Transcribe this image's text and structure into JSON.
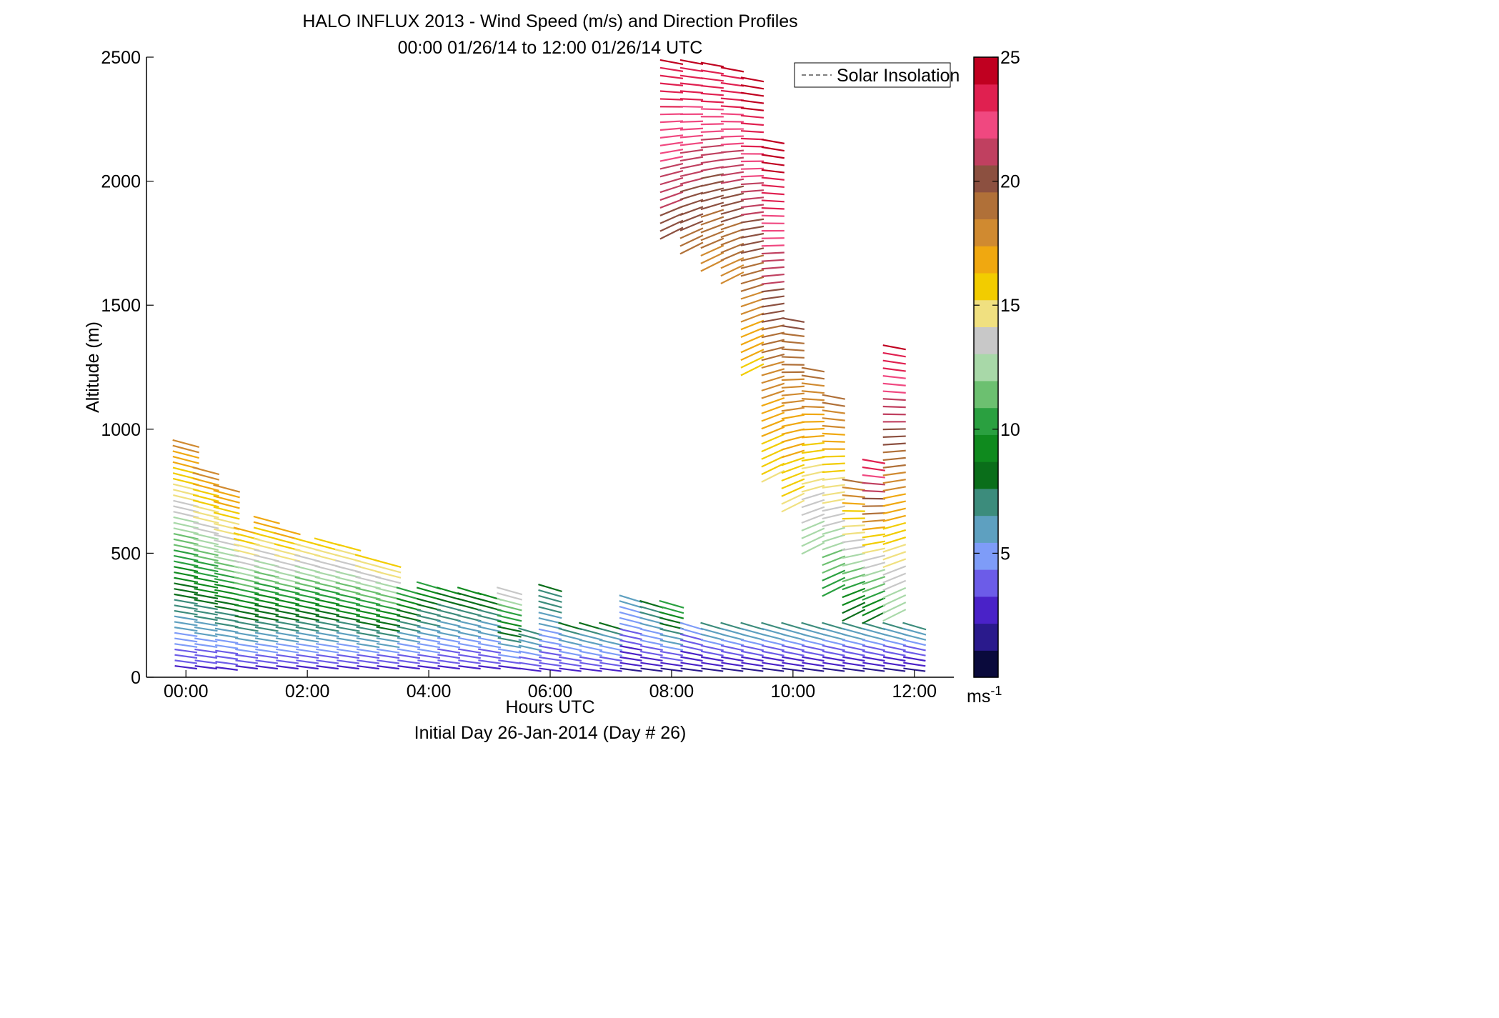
{
  "chart_data": {
    "type": "scatter",
    "subtype": "wind-barb-profile",
    "title": "HALO INFLUX 2013 - Wind Speed (m/s) and Direction Profiles",
    "subtitle": "00:00 01/26/14 to 12:00 01/26/14  UTC",
    "xlabel": "Hours UTC",
    "xlabel2": "Initial Day 26-Jan-2014 (Day # 26)",
    "ylabel": "Altitude (m)",
    "xlim": [
      -0.65,
      12.65
    ],
    "ylim": [
      0,
      2500
    ],
    "xticks": [
      0,
      2,
      4,
      6,
      8,
      10,
      12
    ],
    "xtick_labels": [
      "00:00",
      "02:00",
      "04:00",
      "06:00",
      "08:00",
      "10:00",
      "12:00"
    ],
    "yticks": [
      0,
      500,
      1000,
      1500,
      2000,
      2500
    ],
    "ytick_labels": [
      "0",
      "500",
      "1000",
      "1500",
      "2000",
      "2500"
    ],
    "legend": {
      "entries": [
        "Solar Insolation"
      ],
      "placement": "top-right",
      "style": "dashed-gray"
    },
    "colorbar": {
      "range": [
        0,
        25
      ],
      "ticks": [
        5,
        10,
        15,
        20,
        25
      ],
      "tick_labels": [
        "5",
        "10",
        "15",
        "20",
        "25"
      ],
      "unit_label": "ms",
      "unit_exponent": "-1",
      "colors": [
        "#0a0a3c",
        "#2a1a8c",
        "#4a22c8",
        "#6c5ce8",
        "#7e9cf8",
        "#5ea0c0",
        "#3c8c7c",
        "#0a6e1a",
        "#0f8a1e",
        "#2aa040",
        "#6cc070",
        "#a8d8a8",
        "#c8c8c8",
        "#f0e080",
        "#f2cc00",
        "#f0a810",
        "#d08a30",
        "#b07038",
        "#8c5040",
        "#c04060",
        "#f04880",
        "#e02050",
        "#c00020"
      ]
    },
    "grid": false,
    "profiles": [
      {
        "x": 0.0,
        "z0": 40,
        "z1": 950,
        "dz": 22,
        "s0": 3,
        "s1": 18
      },
      {
        "x": 0.33,
        "z0": 40,
        "z1": 840,
        "dz": 22,
        "s0": 3,
        "s1": 18
      },
      {
        "x": 0.67,
        "z0": 35,
        "z1": 770,
        "dz": 22,
        "s0": 3,
        "s1": 18
      },
      {
        "x": 1.0,
        "z0": 40,
        "z1": 610,
        "dz": 22,
        "s0": 3,
        "s1": 17
      },
      {
        "x": 1.33,
        "z0": 40,
        "z1": 640,
        "dz": 22,
        "s0": 3,
        "s1": 17
      },
      {
        "x": 1.67,
        "z0": 40,
        "z1": 590,
        "dz": 22,
        "s0": 3,
        "s1": 17
      },
      {
        "x": 2.0,
        "z0": 40,
        "z1": 560,
        "dz": 22,
        "s0": 3,
        "s1": 16
      },
      {
        "x": 2.33,
        "z0": 40,
        "z1": 550,
        "dz": 22,
        "s0": 3,
        "s1": 16
      },
      {
        "x": 2.67,
        "z0": 40,
        "z1": 540,
        "dz": 22,
        "s0": 3,
        "s1": 16
      },
      {
        "x": 3.0,
        "z0": 40,
        "z1": 490,
        "dz": 22,
        "s0": 3,
        "s1": 16
      },
      {
        "x": 3.33,
        "z0": 40,
        "z1": 470,
        "dz": 22,
        "s0": 3,
        "s1": 16
      },
      {
        "x": 3.67,
        "z0": 40,
        "z1": 360,
        "dz": 22,
        "s0": 3,
        "s1": 11
      },
      {
        "x": 4.0,
        "z0": 40,
        "z1": 380,
        "dz": 22,
        "s0": 3,
        "s1": 10
      },
      {
        "x": 4.33,
        "z0": 40,
        "z1": 360,
        "dz": 22,
        "s0": 3,
        "s1": 9
      },
      {
        "x": 4.67,
        "z0": 40,
        "z1": 350,
        "dz": 22,
        "s0": 3,
        "s1": 9
      },
      {
        "x": 5.0,
        "z0": 40,
        "z1": 340,
        "dz": 22,
        "s0": 3,
        "s1": 9
      },
      {
        "x": 5.33,
        "z0": 40,
        "z1": 350,
        "dz": 22,
        "s0": 3,
        "s1": 14
      },
      {
        "x": 5.67,
        "z0": 30,
        "z1": 200,
        "dz": 22,
        "s0": 3,
        "s1": 8
      },
      {
        "x": 6.0,
        "z0": 30,
        "z1": 370,
        "dz": 22,
        "s0": 3,
        "s1": 8
      },
      {
        "x": 6.33,
        "z0": 30,
        "z1": 220,
        "dz": 22,
        "s0": 3,
        "s1": 8
      },
      {
        "x": 6.67,
        "z0": 30,
        "z1": 220,
        "dz": 22,
        "s0": 3,
        "s1": 8
      },
      {
        "x": 7.0,
        "z0": 30,
        "z1": 220,
        "dz": 22,
        "s0": 3,
        "s1": 8
      },
      {
        "x": 7.33,
        "z0": 30,
        "z1": 320,
        "dz": 22,
        "s0": 2,
        "s1": 6
      },
      {
        "x": 7.67,
        "z0": 30,
        "z1": 300,
        "dz": 22,
        "s0": 2,
        "s1": 8
      },
      {
        "x": 8.0,
        "z0": 30,
        "z1": 300,
        "dz": 22,
        "s0": 2,
        "s1": 11
      },
      {
        "x": 8.33,
        "z0": 30,
        "z1": 220,
        "dz": 22,
        "s0": 2,
        "s1": 5
      },
      {
        "x": 8.67,
        "z0": 30,
        "z1": 220,
        "dz": 22,
        "s0": 2,
        "s1": 7
      },
      {
        "x": 9.0,
        "z0": 30,
        "z1": 220,
        "dz": 22,
        "s0": 2,
        "s1": 7
      },
      {
        "x": 9.33,
        "z0": 30,
        "z1": 220,
        "dz": 22,
        "s0": 2,
        "s1": 7
      },
      {
        "x": 9.67,
        "z0": 30,
        "z1": 220,
        "dz": 22,
        "s0": 2,
        "s1": 7
      },
      {
        "x": 10.0,
        "z0": 30,
        "z1": 220,
        "dz": 22,
        "s0": 2,
        "s1": 7
      },
      {
        "x": 10.33,
        "z0": 30,
        "z1": 220,
        "dz": 22,
        "s0": 2,
        "s1": 7
      },
      {
        "x": 10.67,
        "z0": 30,
        "z1": 220,
        "dz": 22,
        "s0": 2,
        "s1": 7
      },
      {
        "x": 11.0,
        "z0": 30,
        "z1": 220,
        "dz": 22,
        "s0": 2,
        "s1": 7
      },
      {
        "x": 11.33,
        "z0": 30,
        "z1": 220,
        "dz": 22,
        "s0": 2,
        "s1": 7
      },
      {
        "x": 11.67,
        "z0": 30,
        "z1": 220,
        "dz": 22,
        "s0": 2,
        "s1": 7
      },
      {
        "x": 12.0,
        "z0": 30,
        "z1": 220,
        "dz": 22,
        "s0": 2,
        "s1": 7
      }
    ],
    "upper_profiles": [
      {
        "x": 8.0,
        "z0": 1790,
        "z1": 2480,
        "dz": 30,
        "s0": 20,
        "s1": 24
      },
      {
        "x": 8.33,
        "z0": 1730,
        "z1": 2480,
        "dz": 30,
        "s0": 19,
        "s1": 24
      },
      {
        "x": 8.67,
        "z0": 1660,
        "z1": 2480,
        "dz": 30,
        "s0": 18,
        "s1": 24
      },
      {
        "x": 9.0,
        "z0": 1610,
        "z1": 2450,
        "dz": 30,
        "s0": 18,
        "s1": 24
      },
      {
        "x": 9.33,
        "z0": 1240,
        "z1": 2420,
        "dz": 30,
        "s0": 16,
        "s1": 25
      },
      {
        "x": 9.67,
        "z0": 810,
        "z1": 2180,
        "dz": 30,
        "s0": 15,
        "s1": 25
      },
      {
        "x": 10.0,
        "z0": 690,
        "z1": 1450,
        "dz": 30,
        "s0": 15,
        "s1": 20
      },
      {
        "x": 10.33,
        "z0": 520,
        "z1": 1250,
        "dz": 30,
        "s0": 12,
        "s1": 19
      },
      {
        "x": 10.67,
        "z0": 350,
        "z1": 1130,
        "dz": 30,
        "s0": 10,
        "s1": 19
      },
      {
        "x": 11.0,
        "z0": 250,
        "z1": 810,
        "dz": 30,
        "s0": 8,
        "s1": 19
      },
      {
        "x": 11.33,
        "z0": 240,
        "z1": 880,
        "dz": 30,
        "s0": 8,
        "s1": 24
      },
      {
        "x": 11.67,
        "z0": 250,
        "z1": 1330,
        "dz": 30,
        "s0": 12,
        "s1": 24
      }
    ]
  }
}
